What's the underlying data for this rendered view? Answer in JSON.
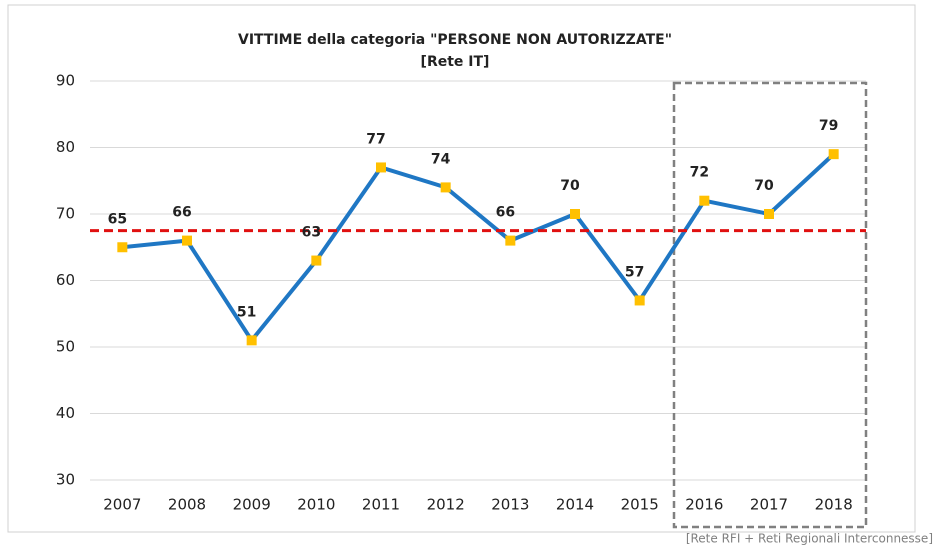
{
  "chart_data": {
    "type": "line",
    "title": "VITTIME della categoria \"PERSONE NON AUTORIZZATE\"",
    "subtitle": "[Rete IT]",
    "annotation": "[Rete RFI + Reti Regionali Interconnesse]",
    "categories": [
      "2007",
      "2008",
      "2009",
      "2010",
      "2011",
      "2012",
      "2013",
      "2014",
      "2015",
      "2016",
      "2017",
      "2018"
    ],
    "series": [
      {
        "name": "Vittime",
        "color": "#1f77c4",
        "marker_color": "#ffc000",
        "values": [
          65,
          66,
          51,
          63,
          77,
          74,
          66,
          70,
          57,
          72,
          70,
          79
        ]
      }
    ],
    "reference_line": {
      "value": 67.5,
      "color": "#e01010"
    },
    "ylim": [
      30,
      90
    ],
    "yticks": [
      30,
      40,
      50,
      60,
      70,
      80,
      90
    ],
    "grid": true,
    "legend": false
  }
}
